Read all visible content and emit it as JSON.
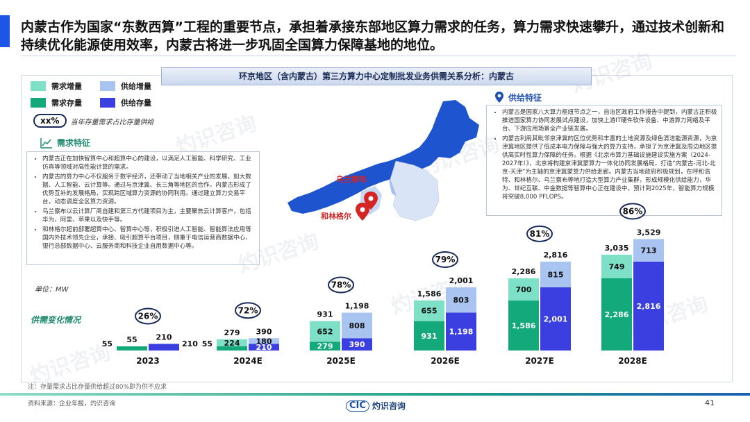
{
  "headline": "内蒙古作为国家“东数西算”工程的重要节点，承担着承接东部地区算力需求的任务，算力需求快速攀升，通过技术创新和持续优化能源使用效率，内蒙古将进一步巩固全国算力保障基地的地位。",
  "panel_title": "环京地区（含内蒙古）第三方算力中心定制批发业务供需关系分析：内蒙古",
  "legend": {
    "demand_increase": "需求增量",
    "supply_increase": "供给增量",
    "demand_stock": "需求存量",
    "supply_stock": "供给存量"
  },
  "pct_key": {
    "oval": "xx%",
    "text": "当年存量需求占比存量供给"
  },
  "demand": {
    "heading": "需求特征",
    "items": [
      "内蒙古正在加快智算中心和超算中心的建设，以满足人工智能、科学研究、工业仿真等领域对高性能计算的需求。",
      "内蒙古的算力中心不仅服务于数字经济，还带动了当地相关产业的发展，如大数据、人工智能、云计算等。通过与京津冀、长三角等地区的合作，内蒙古形成了优势互补的发展格局，实现跨区域算力资源的协同利用。通过建立算力交易平台，动态调度全区算力资源。",
      "乌兰察布以云计算厂商自建和第三方代建项目为主，主要聚焦云计算客户，包括华为、阿里、苹果以及快手等。",
      "和林格尔超前部署超算中心、智算中心等，积极引进人工智能、智能算法应用等国内外技术领先企业，承接、吸引超算平台项目，侧重于电信运营商数据中心、银行总部数据中心、云服务商和科技企业自用数据中心等。"
    ]
  },
  "supply": {
    "heading": "供给特征",
    "items": [
      "内蒙古是国家八大算力枢纽节点之一，自治区政府工作报告中提到，内蒙古正积极推进国家算力协同发展试点建设，加快上游IT硬件软件设备、中游算力网络及平台、下游应用场景全产业链发展。",
      "内蒙古利用其毗邻京津冀的区位优势和丰富的土地资源及绿色清洁能源资源，为京津冀地区提供了低成本电力保障与强大的算力支持，承担了为京津冀及周边地区提供高实时性算力保障的任务。根据《北京市算力基础设施建设实施方案（2024-2027年）》，北京将构建京津冀蒙算力一体化协同发展格局，打造“内蒙古-河北-北京-天津”为主轴的京津冀蒙算力供给走廊。内蒙古当地政府积极规划，在呼和浩特、和林格尔、乌兰察布等地打造大型算力产业集群，形成规模化供给能力，华为、世纪互联、中金数据等智算中心正在建设中，预计到2025年，智能算力规模将突破8,000 PFLOPS。"
    ]
  },
  "map_labels": {
    "city1": "乌兰察布",
    "city2": "和林格尔"
  },
  "unit": "单位：MW",
  "trend_label": "供需变化情况",
  "note": "注：存量需求占比存量供给超过80%即为供不应求",
  "source": "资料来源：企业年报，灼识咨询",
  "page_number": "41",
  "brand": {
    "mark": "CIC",
    "name": "灼识咨询"
  },
  "watermark": {
    "cn": "灼识咨询",
    "en": "China Insights Consultancy"
  },
  "colors": {
    "demand_increase": "#7ee0c6",
    "supply_increase": "#a9c4f0",
    "demand_stock": "#13a97a",
    "supply_stock": "#3b3fe0",
    "accent": "#1d55e8"
  },
  "chart_data": {
    "type": "bar",
    "categories": [
      "2023",
      "2024E",
      "2025E",
      "2026E",
      "2027E",
      "2028E"
    ],
    "series": [
      {
        "name": "需求存量",
        "values": [
          55,
          55,
          279,
          931,
          1586,
          2286
        ]
      },
      {
        "name": "需求增量",
        "values": [
          0,
          224,
          652,
          655,
          700,
          749
        ]
      },
      {
        "name": "供给存量",
        "values": [
          210,
          210,
          390,
          1198,
          2001,
          2816
        ]
      },
      {
        "name": "供给增量",
        "values": [
          0,
          180,
          808,
          803,
          815,
          713
        ]
      }
    ],
    "demand_totals": [
      55,
      279,
      931,
      1586,
      2286,
      3035
    ],
    "supply_totals": [
      210,
      390,
      1198,
      2001,
      2816,
      3529
    ],
    "stock_demand_ratio": [
      "26%",
      "72%",
      "78%",
      "79%",
      "81%",
      "86%"
    ],
    "ylabel": "MW"
  }
}
